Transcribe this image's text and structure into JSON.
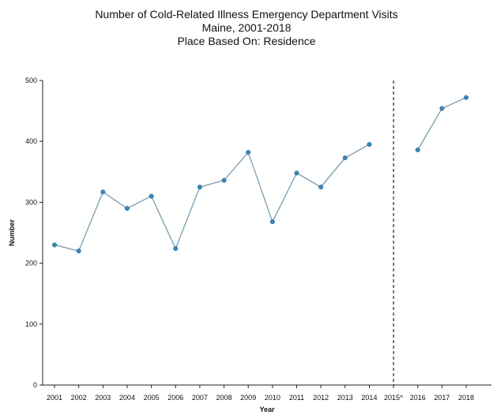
{
  "chart_data": {
    "type": "line",
    "title": "Number of Cold-Related Illness Emergency Department Visits",
    "subtitle": "Maine, 2001-2018",
    "subtitle2": "Place Based On: Residence",
    "xlabel": "Year",
    "ylabel": "Number",
    "categories": [
      "2001",
      "2002",
      "2003",
      "2004",
      "2005",
      "2006",
      "2007",
      "2008",
      "2009",
      "2010",
      "2011",
      "2012",
      "2013",
      "2014",
      "2015^",
      "2016",
      "2017",
      "2018"
    ],
    "series": [
      {
        "values": [
          230,
          220,
          317,
          290,
          310,
          224,
          325,
          336,
          382,
          268,
          348,
          325,
          373,
          395,
          null,
          386,
          454,
          472
        ]
      }
    ],
    "ylim": [
      0,
      500
    ],
    "yticks": [
      0,
      100,
      200,
      300,
      400,
      500
    ],
    "break_marker": {
      "category": "2015^",
      "style": "dashed"
    },
    "grid": false,
    "line_color": "#7a9cb0",
    "point_color": "#3d87b5"
  }
}
